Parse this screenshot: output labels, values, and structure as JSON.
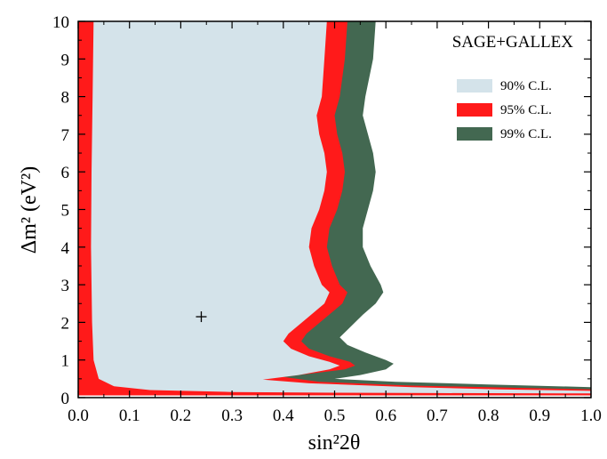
{
  "chart_data": {
    "type": "area",
    "title": "SAGE+GALLEX",
    "xlabel": "sin²2θ",
    "ylabel": "Δm² (eV²)",
    "xlim": [
      0.0,
      1.0
    ],
    "ylim": [
      0,
      10
    ],
    "x_ticks": [
      "0.0",
      "0.1",
      "0.2",
      "0.3",
      "0.4",
      "0.5",
      "0.6",
      "0.7",
      "0.8",
      "0.9",
      "1.0"
    ],
    "y_ticks": [
      "0",
      "1",
      "2",
      "3",
      "4",
      "5",
      "6",
      "7",
      "8",
      "9",
      "10"
    ],
    "legend_position": "top-right",
    "grid": false,
    "best_fit": {
      "x": 0.24,
      "y": 2.15,
      "marker": "+"
    },
    "series": [
      {
        "name": "99% C.L.",
        "color": "#436851",
        "left_boundary": [
          [
            0.0,
            10
          ],
          [
            0.0,
            0.06
          ],
          [
            1.0,
            0.06
          ],
          [
            1.0,
            0.28
          ]
        ],
        "right_boundary": [
          [
            0.58,
            10
          ],
          [
            0.575,
            9
          ],
          [
            0.56,
            8
          ],
          [
            0.555,
            7.5
          ],
          [
            0.565,
            7
          ],
          [
            0.575,
            6.5
          ],
          [
            0.58,
            6
          ],
          [
            0.575,
            5.5
          ],
          [
            0.565,
            5
          ],
          [
            0.555,
            4.5
          ],
          [
            0.555,
            4
          ],
          [
            0.57,
            3.5
          ],
          [
            0.59,
            3
          ],
          [
            0.595,
            2.8
          ],
          [
            0.58,
            2.5
          ],
          [
            0.555,
            2.2
          ],
          [
            0.525,
            1.8
          ],
          [
            0.51,
            1.6
          ],
          [
            0.525,
            1.4
          ],
          [
            0.56,
            1.2
          ],
          [
            0.6,
            1.0
          ],
          [
            0.615,
            0.9
          ],
          [
            0.6,
            0.75
          ],
          [
            0.55,
            0.6
          ],
          [
            0.5,
            0.5
          ],
          [
            0.62,
            0.42
          ],
          [
            0.8,
            0.35
          ],
          [
            1.0,
            0.28
          ]
        ]
      },
      {
        "name": "95% C.L.",
        "color": "#ff1a1a",
        "left_boundary": [
          [
            0.0,
            10
          ],
          [
            0.0,
            0.06
          ],
          [
            1.0,
            0.06
          ],
          [
            1.0,
            0.22
          ]
        ],
        "right_boundary": [
          [
            0.525,
            10
          ],
          [
            0.52,
            9
          ],
          [
            0.51,
            8
          ],
          [
            0.5,
            7.5
          ],
          [
            0.505,
            7
          ],
          [
            0.515,
            6.5
          ],
          [
            0.52,
            6
          ],
          [
            0.515,
            5.5
          ],
          [
            0.505,
            5
          ],
          [
            0.49,
            4.5
          ],
          [
            0.485,
            4
          ],
          [
            0.495,
            3.5
          ],
          [
            0.51,
            3
          ],
          [
            0.525,
            2.8
          ],
          [
            0.515,
            2.5
          ],
          [
            0.48,
            2.1
          ],
          [
            0.445,
            1.7
          ],
          [
            0.435,
            1.5
          ],
          [
            0.45,
            1.3
          ],
          [
            0.49,
            1.1
          ],
          [
            0.53,
            0.95
          ],
          [
            0.54,
            0.85
          ],
          [
            0.52,
            0.75
          ],
          [
            0.46,
            0.65
          ],
          [
            0.4,
            0.55
          ],
          [
            0.47,
            0.42
          ],
          [
            0.65,
            0.32
          ],
          [
            1.0,
            0.22
          ]
        ]
      },
      {
        "name": "90% C.L.",
        "color": "#d4e3ea",
        "left_boundary": [
          [
            0.03,
            10
          ],
          [
            0.028,
            8
          ],
          [
            0.026,
            6
          ],
          [
            0.025,
            4
          ],
          [
            0.027,
            2
          ],
          [
            0.03,
            1
          ],
          [
            0.04,
            0.5
          ],
          [
            0.07,
            0.3
          ],
          [
            0.14,
            0.2
          ],
          [
            0.3,
            0.15
          ],
          [
            0.5,
            0.13
          ],
          [
            0.7,
            0.12
          ],
          [
            1.0,
            0.11
          ]
        ],
        "right_boundary": [
          [
            0.485,
            10
          ],
          [
            0.48,
            9
          ],
          [
            0.475,
            8
          ],
          [
            0.465,
            7.5
          ],
          [
            0.47,
            7
          ],
          [
            0.48,
            6.5
          ],
          [
            0.485,
            6
          ],
          [
            0.48,
            5.5
          ],
          [
            0.47,
            5
          ],
          [
            0.455,
            4.5
          ],
          [
            0.45,
            4
          ],
          [
            0.46,
            3.5
          ],
          [
            0.475,
            3
          ],
          [
            0.49,
            2.8
          ],
          [
            0.48,
            2.5
          ],
          [
            0.445,
            2.1
          ],
          [
            0.41,
            1.7
          ],
          [
            0.4,
            1.5
          ],
          [
            0.415,
            1.3
          ],
          [
            0.45,
            1.1
          ],
          [
            0.49,
            0.95
          ],
          [
            0.51,
            0.85
          ],
          [
            0.49,
            0.75
          ],
          [
            0.43,
            0.6
          ],
          [
            0.36,
            0.48
          ],
          [
            0.45,
            0.38
          ],
          [
            0.65,
            0.28
          ],
          [
            0.82,
            0.22
          ],
          [
            1.0,
            0.18
          ]
        ]
      }
    ]
  }
}
